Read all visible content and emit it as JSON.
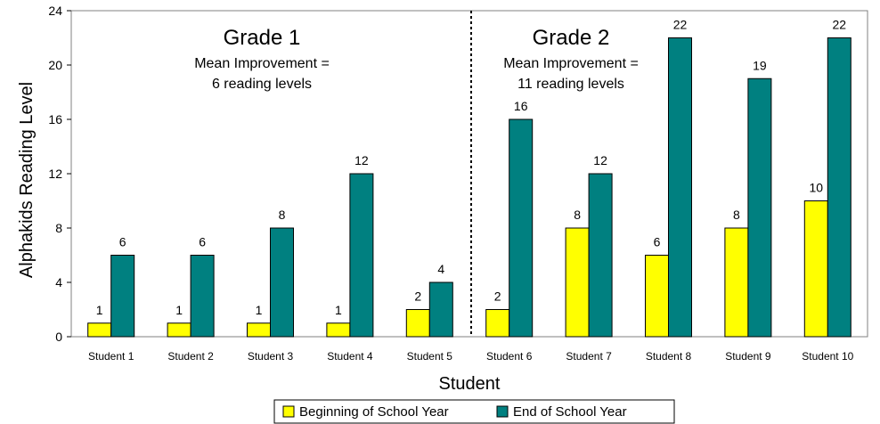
{
  "chart_data": {
    "type": "bar",
    "categories": [
      "Student 1",
      "Student 2",
      "Student 3",
      "Student 4",
      "Student 5",
      "Student 6",
      "Student 7",
      "Student 8",
      "Student 9",
      "Student 10"
    ],
    "series": [
      {
        "name": "Beginning of School Year",
        "values": [
          1,
          1,
          1,
          1,
          2,
          2,
          8,
          6,
          8,
          10
        ],
        "color": "#ffff00"
      },
      {
        "name": "End of School Year",
        "values": [
          6,
          6,
          8,
          12,
          4,
          16,
          12,
          22,
          19,
          22
        ],
        "color": "#008080"
      }
    ],
    "xlabel": "Student",
    "ylabel": "Alphakids Reading Level",
    "ylim": [
      0,
      24
    ],
    "yticks": [
      0,
      4,
      8,
      12,
      16,
      20,
      24
    ],
    "grid": false,
    "legend": "bottom",
    "annotations": [
      {
        "group": "grade-1",
        "title": "Grade 1",
        "line1": "Mean Improvement =",
        "line2": "6 reading levels"
      },
      {
        "group": "grade-2",
        "title": "Grade 2",
        "line1": "Mean Improvement =",
        "line2": "11 reading levels"
      }
    ],
    "divider_after_category": "Student 5"
  }
}
